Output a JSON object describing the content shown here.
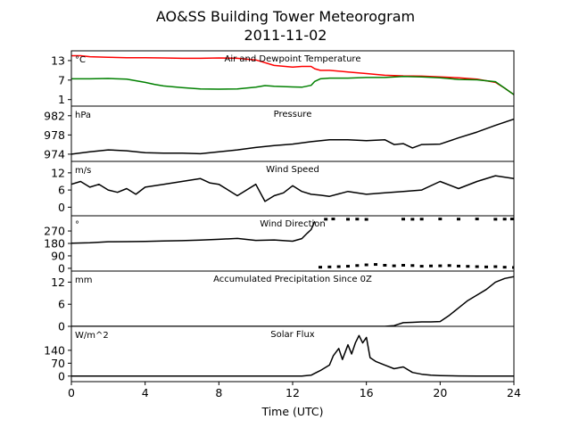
{
  "chart_data": {
    "type": "line",
    "title": "AO&SS Building Tower Meteorogram",
    "subtitle": "2011-11-02",
    "xlabel": "Time (UTC)",
    "xlim": [
      0,
      24
    ],
    "xticks": [
      0,
      4,
      8,
      12,
      16,
      20,
      24
    ],
    "colors": {
      "air": "#ff0000",
      "dewpoint": "#008000",
      "default": "#000000"
    },
    "panels": [
      {
        "title": "Air and Dewpoint Temperature",
        "unit": "°C",
        "ylim": [
          -1,
          16
        ],
        "yticks": [
          1,
          7,
          13
        ],
        "series": [
          {
            "key": "air",
            "color": "#ff0000",
            "style": "line",
            "x": [
              0,
              0.5,
              1,
              2,
              3,
              4,
              5,
              6,
              7,
              8,
              9,
              10,
              11,
              12,
              12.5,
              13,
              13.2,
              13.5,
              14,
              15,
              16,
              17,
              17.5,
              18,
              19,
              20,
              21,
              22,
              23,
              23.5,
              24
            ],
            "y": [
              14.5,
              14.5,
              14.2,
              14,
              13.9,
              13.9,
              13.8,
              13.7,
              13.7,
              13.8,
              13.7,
              13.2,
              11.5,
              11,
              11.2,
              11.2,
              10.5,
              10,
              10,
              9.5,
              9,
              8.5,
              8.4,
              8.3,
              8.2,
              8,
              7.7,
              7.3,
              6.3,
              4.5,
              2.5
            ]
          },
          {
            "key": "dewpoint",
            "color": "#008000",
            "style": "line",
            "x": [
              0,
              1,
              2,
              3,
              4,
              4.5,
              5,
              6,
              7,
              8,
              9,
              10,
              10.5,
              11,
              12,
              12.5,
              13,
              13.2,
              13.5,
              14,
              15,
              16,
              17,
              18,
              19,
              20,
              21,
              22,
              23,
              23.5,
              24
            ],
            "y": [
              7.4,
              7.4,
              7.5,
              7.3,
              6.3,
              5.7,
              5.2,
              4.7,
              4.3,
              4.2,
              4.3,
              4.8,
              5.3,
              5.1,
              4.9,
              4.8,
              5.4,
              6.6,
              7.4,
              7.6,
              7.6,
              7.8,
              7.8,
              8.1,
              8,
              7.7,
              7.2,
              7.1,
              6.5,
              4.5,
              2.5
            ]
          }
        ]
      },
      {
        "title": "Pressure",
        "unit": "hPa",
        "ylim": [
          972.5,
          984
        ],
        "yticks": [
          974,
          978,
          982
        ],
        "series": [
          {
            "key": "pressure",
            "color": "#000000",
            "style": "line",
            "x": [
              0,
              1,
              2,
              3,
              4,
              5,
              6,
              7,
              8,
              9,
              10,
              11,
              12,
              13,
              14,
              15,
              16,
              17,
              17.5,
              18,
              18.5,
              19,
              20,
              21,
              22,
              23,
              24
            ],
            "y": [
              974,
              974.5,
              974.9,
              974.7,
              974.3,
              974.2,
              974.2,
              974.1,
              974.5,
              974.9,
              975.4,
              975.8,
              976.1,
              976.6,
              977,
              977,
              976.8,
              977,
              976,
              976.2,
              975.3,
              976,
              976.1,
              977.4,
              978.6,
              980,
              981.3
            ]
          }
        ]
      },
      {
        "title": "Wind Speed",
        "unit": "m/s",
        "ylim": [
          -3,
          16
        ],
        "yticks": [
          0,
          6,
          12
        ],
        "series": [
          {
            "key": "wind_speed",
            "color": "#000000",
            "style": "line",
            "x": [
              0,
              0.5,
              1,
              1.5,
              2,
              2.5,
              3,
              3.5,
              4,
              5,
              6,
              7,
              7.5,
              8,
              8.5,
              9,
              9.5,
              10,
              10.5,
              11,
              11.5,
              12,
              12.5,
              13,
              13.5,
              14,
              15,
              16,
              17,
              18,
              19,
              20,
              21,
              22,
              23,
              24
            ],
            "y": [
              8,
              9,
              7,
              8,
              6,
              5.2,
              6.5,
              4.5,
              7,
              8,
              9,
              10,
              8.5,
              8,
              6,
              4,
              6,
              8,
              2,
              4,
              5,
              7.5,
              5.5,
              4.5,
              4.2,
              3.8,
              5.5,
              4.5,
              5,
              5.5,
              6,
              9,
              6.5,
              9,
              11,
              10
            ]
          }
        ]
      },
      {
        "title": "Wind Direction",
        "unit": "°",
        "ylim": [
          -20,
          380
        ],
        "yticks": [
          0,
          90,
          180,
          270
        ],
        "series": [
          {
            "key": "direction_south",
            "color": "#000000",
            "style": "line",
            "x": [
              0,
              1,
              2,
              3,
              4,
              5,
              6,
              7,
              8,
              9,
              10,
              11,
              12,
              12.5,
              12.8,
              13,
              13.2
            ],
            "y": [
              181,
              185,
              192,
              193,
              195,
              198,
              200,
              204,
              210,
              216,
              202,
              205,
              196,
              215,
              255,
              280,
              340
            ]
          },
          {
            "key": "direction_north",
            "color": "#000000",
            "style": "dots",
            "x": [
              13.5,
              14,
              14.5,
              15,
              15.5,
              16,
              16.5,
              17,
              17.5,
              18,
              18.5,
              19,
              19.5,
              20,
              20.5,
              21,
              21.5,
              22,
              22.5,
              23,
              23.5,
              24
            ],
            "y": [
              8,
              10,
              12,
              15,
              20,
              25,
              28,
              22,
              18,
              22,
              20,
              15,
              17,
              18,
              20,
              16,
              14,
              12,
              10,
              12,
              8,
              6
            ]
          },
          {
            "key": "direction_high",
            "color": "#000000",
            "style": "dots",
            "x": [
              13.8,
              14.2,
              15,
              15.5,
              16,
              18,
              18.5,
              19,
              20,
              21,
              22,
              23,
              23.5,
              23.9
            ],
            "y": [
              355,
              357,
              355,
              356,
              354,
              356,
              355,
              356,
              357,
              356,
              357,
              355,
              356,
              357
            ]
          }
        ]
      },
      {
        "title": "Accumulated Precipitation Since 0Z",
        "unit": "mm",
        "ylim": [
          0,
          15
        ],
        "yticks": [
          0,
          6,
          12
        ],
        "series": [
          {
            "key": "precip",
            "color": "#000000",
            "style": "line",
            "x": [
              0,
              17,
              17.5,
              18,
              18.5,
              19,
              19.5,
              20,
              20.5,
              21,
              21.5,
              22,
              22.5,
              23,
              23.5,
              24
            ],
            "y": [
              0,
              0,
              0.2,
              1,
              1.1,
              1.2,
              1.2,
              1.3,
              3,
              5,
              7,
              8.5,
              10,
              12,
              13,
              13.5
            ]
          }
        ]
      },
      {
        "title": "Solar Flux",
        "unit": "W/m^2",
        "ylim": [
          -30,
          270
        ],
        "yticks": [
          0,
          70,
          140
        ],
        "series": [
          {
            "key": "solar",
            "color": "#000000",
            "style": "line",
            "x": [
              0,
              12,
              12.5,
              13,
              13.2,
              13.5,
              14,
              14.2,
              14.5,
              14.7,
              15,
              15.2,
              15.4,
              15.6,
              15.8,
              16,
              16.2,
              16.5,
              17,
              17.5,
              18,
              18.5,
              19,
              19.5,
              20,
              21,
              22,
              24
            ],
            "y": [
              0,
              0,
              0,
              5,
              15,
              30,
              60,
              110,
              150,
              90,
              170,
              120,
              180,
              220,
              180,
              210,
              100,
              80,
              60,
              40,
              50,
              20,
              10,
              5,
              3,
              1,
              0,
              0
            ]
          }
        ]
      }
    ]
  }
}
